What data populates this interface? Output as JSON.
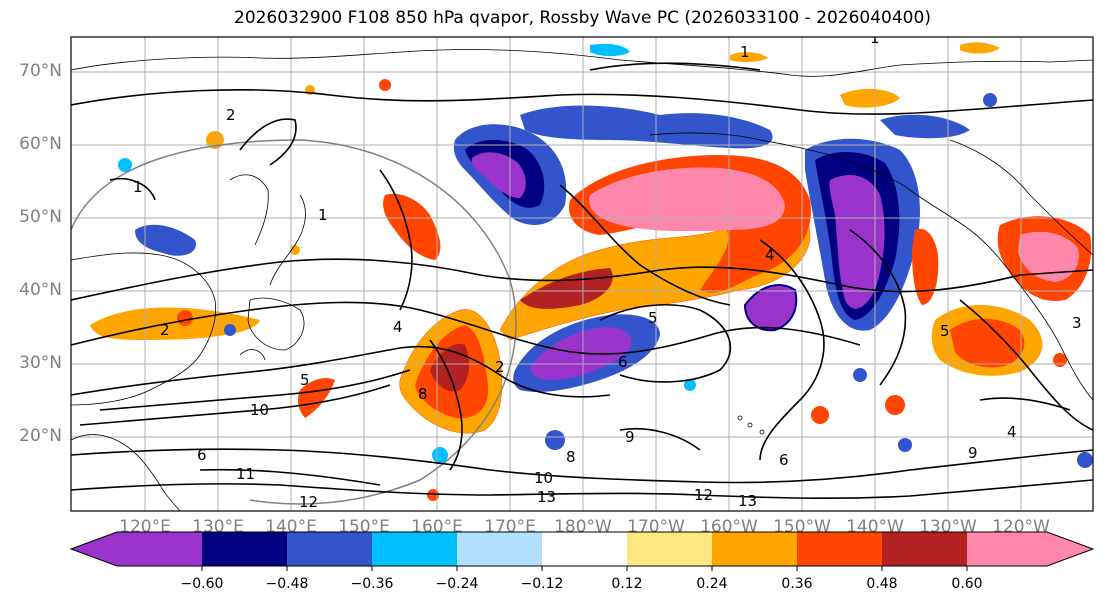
{
  "map": {
    "title": "2026032900 F108 850 hPa qvapor, Rossby Wave PC (2026033100 - 2026040400)",
    "lat_labels": [
      "70°N",
      "60°N",
      "50°N",
      "40°N",
      "30°N",
      "20°N"
    ],
    "lon_labels": [
      "120°E",
      "130°E",
      "140°E",
      "150°E",
      "160°E",
      "170°E",
      "180°W",
      "170°W",
      "160°W",
      "150°W",
      "140°W",
      "130°W",
      "120°W"
    ],
    "contour_labels": [
      "1",
      "1",
      "1",
      "2",
      "2",
      "4",
      "5",
      "6",
      "6",
      "8",
      "9",
      "10",
      "10",
      "11",
      "12",
      "12",
      "13",
      "13",
      "9",
      "8",
      "4",
      "5",
      "6",
      "1",
      "5",
      "2",
      "3",
      "4"
    ],
    "colors": {
      "grid": "#b0b0b0",
      "coast": "#000000",
      "label": "#808080"
    }
  },
  "colorbar": {
    "ticks": [
      "−0.60",
      "−0.48",
      "−0.36",
      "−0.24",
      "−0.12",
      "0.12",
      "0.24",
      "0.36",
      "0.48",
      "0.60"
    ],
    "bins": [
      "#9933cc",
      "#000080",
      "#3355cc",
      "#00bfff",
      "#b3e0ff",
      "#ffffff",
      "#ffe680",
      "#ffa500",
      "#ff4500",
      "#b22222",
      "#ff88aa"
    ],
    "under_color": "#9933cc",
    "over_color": "#ff88aa"
  }
}
